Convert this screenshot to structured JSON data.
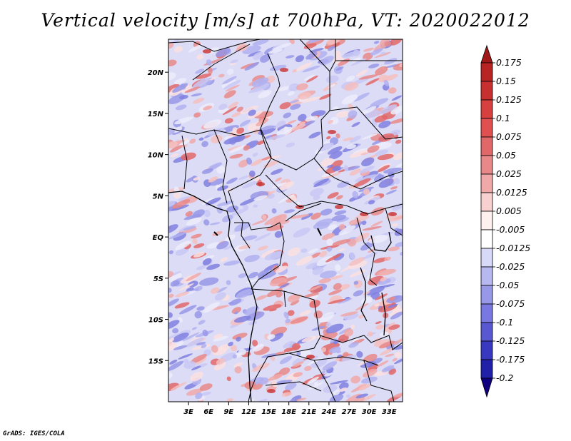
{
  "title": "Vertical velocity [m/s] at 700hPa, VT: 2020022012",
  "footer": "GrADS: IGES/COLA",
  "map": {
    "variable": "Vertical velocity",
    "units": "m/s",
    "level": "700hPa",
    "valid_time": "2020022012",
    "lon_range": [
      0,
      35
    ],
    "lat_range": [
      -20,
      24
    ],
    "lat_ticks": [
      {
        "value": 20,
        "label": "20N"
      },
      {
        "value": 15,
        "label": "15N"
      },
      {
        "value": 10,
        "label": "10N"
      },
      {
        "value": 5,
        "label": "5N"
      },
      {
        "value": 0,
        "label": "EQ"
      },
      {
        "value": -5,
        "label": "5S"
      },
      {
        "value": -10,
        "label": "10S"
      },
      {
        "value": -15,
        "label": "15S"
      }
    ],
    "lon_ticks": [
      {
        "value": 3,
        "label": "3E"
      },
      {
        "value": 6,
        "label": "6E"
      },
      {
        "value": 9,
        "label": "9E"
      },
      {
        "value": 12,
        "label": "12E"
      },
      {
        "value": 15,
        "label": "15E"
      },
      {
        "value": 18,
        "label": "18E"
      },
      {
        "value": 21,
        "label": "21E"
      },
      {
        "value": 24,
        "label": "24E"
      },
      {
        "value": 27,
        "label": "27E"
      },
      {
        "value": 30,
        "label": "30E"
      },
      {
        "value": 33,
        "label": "33E"
      }
    ]
  },
  "colorbar": {
    "labels": [
      "0.175",
      "0.15",
      "0.125",
      "0.1",
      "0.075",
      "0.05",
      "0.025",
      "0.0125",
      "0.005",
      "-0.005",
      "-0.0125",
      "-0.025",
      "-0.05",
      "-0.075",
      "-0.1",
      "-0.125",
      "-0.175",
      "-0.2"
    ],
    "colors": [
      "#a01818",
      "#b82424",
      "#c83030",
      "#d84040",
      "#e05050",
      "#e06868",
      "#e88888",
      "#f0a8a8",
      "#f8d0d0",
      "#fff0f0",
      "#ffffff",
      "#d8d8f8",
      "#b8b8f0",
      "#9898e8",
      "#7878e0",
      "#5858d0",
      "#3838c0",
      "#2020a8",
      "#100080"
    ]
  }
}
